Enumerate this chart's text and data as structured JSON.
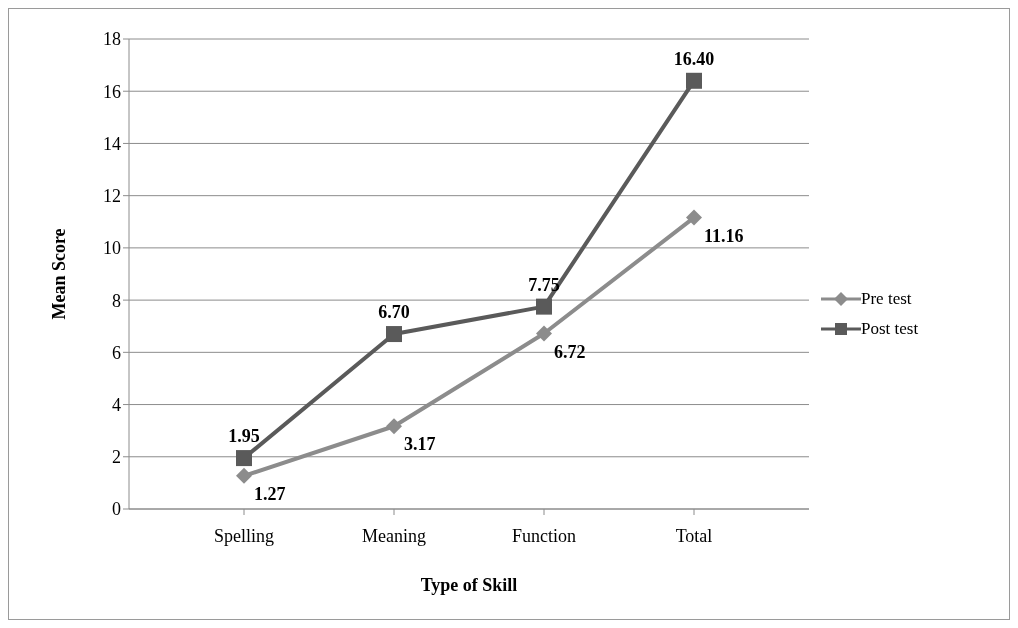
{
  "chart_data": {
    "type": "line",
    "xlabel": "Type of Skill",
    "ylabel": "Mean Score",
    "categories": [
      "Spelling",
      "Meaning",
      "Function",
      "Total"
    ],
    "series": [
      {
        "name": "Pre test",
        "color": "#8c8c8c",
        "marker": "diamond",
        "values": [
          1.27,
          3.17,
          6.72,
          11.16
        ],
        "value_labels": [
          "1.27",
          "3.17",
          "6.72",
          "11.16"
        ]
      },
      {
        "name": "Post test",
        "color": "#5a5a5a",
        "marker": "square",
        "values": [
          1.95,
          6.7,
          7.75,
          16.4
        ],
        "value_labels": [
          "1.95",
          "6.70",
          "7.75",
          "16.40"
        ]
      }
    ],
    "ylim": [
      0,
      18
    ],
    "yticks": [
      0,
      2,
      4,
      6,
      8,
      10,
      12,
      14,
      16,
      18
    ],
    "grid": "y",
    "legend": "right"
  }
}
